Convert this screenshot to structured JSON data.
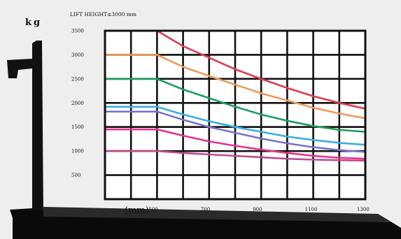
{
  "y_unit": "kg",
  "x_unit": "(mm)",
  "chart_data": {
    "type": "line",
    "title": "LIFT HEIGHT≤3000 mm",
    "xlabel": "(mm)",
    "ylabel": "kg",
    "xlim": [
      300,
      1300
    ],
    "ylim": [
      0,
      3500
    ],
    "x_ticks": [
      500,
      700,
      900,
      1100,
      1300
    ],
    "x_tick_labels": [
      "500",
      "700",
      "900",
      "1100",
      "1300"
    ],
    "y_ticks": [
      500,
      1000,
      1500,
      2000,
      2500,
      3000,
      3500
    ],
    "y_tick_labels": [
      "500",
      "1000",
      "1500",
      "2000",
      "2500",
      "3000",
      "3500"
    ],
    "grid": true,
    "series": [
      {
        "color": "#e03a4e",
        "x": [
          300,
          500,
          600,
          700,
          800,
          900,
          1000,
          1100,
          1200,
          1300
        ],
        "y": [
          3500,
          3500,
          3180,
          2940,
          2700,
          2500,
          2310,
          2140,
          2000,
          1880
        ]
      },
      {
        "color": "#f09a5a",
        "x": [
          300,
          500,
          600,
          700,
          800,
          900,
          1000,
          1100,
          1200,
          1300
        ],
        "y": [
          3000,
          3000,
          2750,
          2560,
          2380,
          2200,
          2050,
          1900,
          1780,
          1680
        ]
      },
      {
        "color": "#1f9e5e",
        "x": [
          300,
          500,
          600,
          700,
          800,
          900,
          1000,
          1100,
          1200,
          1300
        ],
        "y": [
          2500,
          2500,
          2280,
          2100,
          1920,
          1760,
          1630,
          1520,
          1440,
          1400
        ]
      },
      {
        "color": "#3aaee0",
        "x": [
          300,
          500,
          600,
          700,
          800,
          900,
          1000,
          1100,
          1200,
          1300
        ],
        "y": [
          1920,
          1920,
          1760,
          1620,
          1500,
          1400,
          1300,
          1230,
          1170,
          1130
        ]
      },
      {
        "color": "#7b73c8",
        "x": [
          300,
          500,
          600,
          700,
          800,
          900,
          1000,
          1100,
          1200,
          1300
        ],
        "y": [
          1820,
          1820,
          1650,
          1500,
          1380,
          1260,
          1160,
          1080,
          1020,
          980
        ]
      },
      {
        "color": "#e8338c",
        "x": [
          300,
          500,
          600,
          700,
          800,
          900,
          1000,
          1100,
          1200,
          1300
        ],
        "y": [
          1450,
          1450,
          1320,
          1200,
          1110,
          1030,
          960,
          900,
          860,
          840
        ]
      },
      {
        "color": "#c04a8a",
        "x": [
          300,
          500,
          600,
          700,
          800,
          900,
          1000,
          1100,
          1200,
          1300
        ],
        "y": [
          1000,
          1000,
          960,
          930,
          900,
          870,
          840,
          820,
          810,
          800
        ]
      }
    ]
  }
}
